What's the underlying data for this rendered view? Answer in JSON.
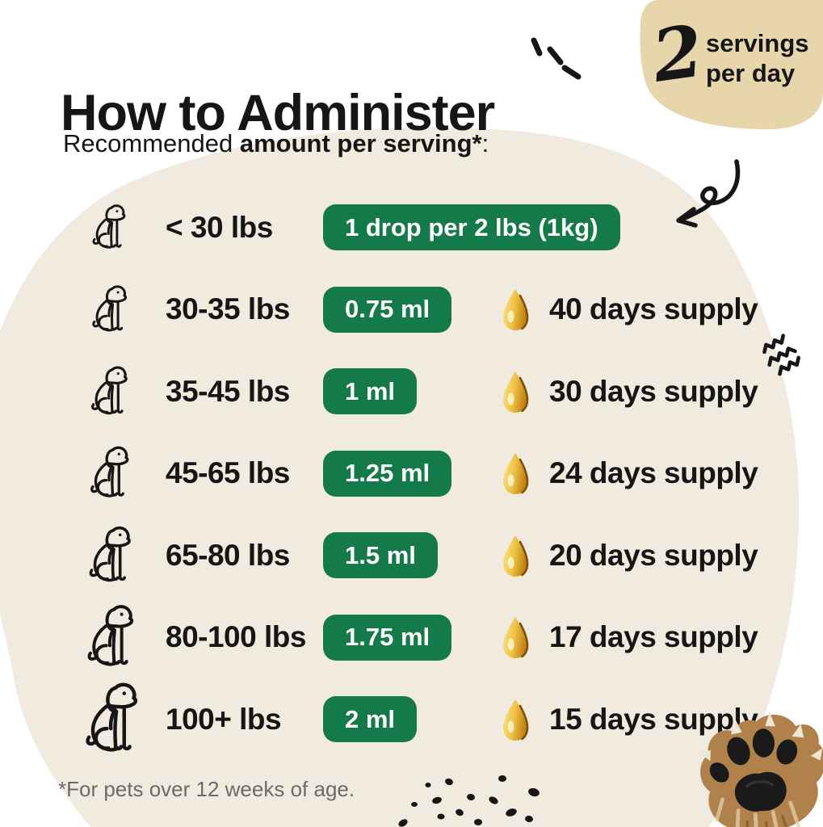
{
  "header": {
    "title": "How to Administer",
    "subtitle_regular": "Recommended ",
    "subtitle_bold": "amount per serving*",
    "subtitle_suffix": ":"
  },
  "badge": {
    "number": "2",
    "line1": "servings",
    "line2": "per day"
  },
  "table": {
    "rows": [
      {
        "weight": "< 30 lbs",
        "dose": "1 drop per 2 lbs (1kg)",
        "supply": ""
      },
      {
        "weight": "30-35 lbs",
        "dose": "0.75 ml",
        "supply": "40 days supply"
      },
      {
        "weight": "35-45 lbs",
        "dose": "1 ml",
        "supply": "30 days supply"
      },
      {
        "weight": "45-65 lbs",
        "dose": "1.25 ml",
        "supply": "24 days supply"
      },
      {
        "weight": "65-80 lbs",
        "dose": "1.5 ml",
        "supply": "20 days supply"
      },
      {
        "weight": "80-100 lbs",
        "dose": "1.75 ml",
        "supply": "17 days supply"
      },
      {
        "weight": "100+ lbs",
        "dose": "2 ml",
        "supply": "15 days supply"
      }
    ]
  },
  "footer": {
    "note": "*For pets over 12 weeks of age."
  },
  "colors": {
    "pill_green": "#157a4a",
    "blob_cream": "#f0ebde",
    "badge_tan": "#e7d6ab",
    "ink": "#161616",
    "note_gray": "#6b6b6b",
    "drop_gold": "#eec043"
  },
  "icons": {
    "dog": "dog-line-icon",
    "drop": "oil-drop-icon",
    "paw": "dog-paw-photo",
    "arrow": "hand-drawn-arrow-icon",
    "sparkle": "emphasis-dashes-icon",
    "squiggle": "squiggle-icon",
    "dots": "scattered-dots-icon"
  }
}
